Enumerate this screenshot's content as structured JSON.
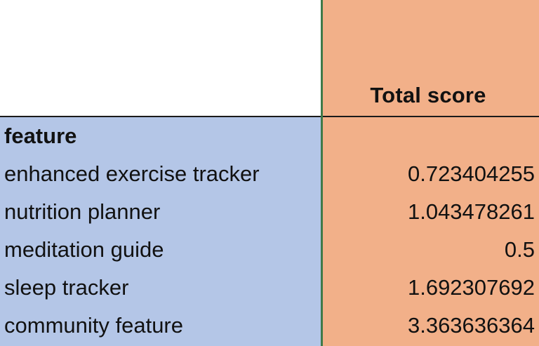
{
  "sheet": {
    "header": {
      "total_score_label": "Total score"
    },
    "row_header_label": "feature",
    "rows": [
      {
        "feature": "enhanced exercise tracker",
        "total_score": "0.723404255"
      },
      {
        "feature": "nutrition planner",
        "total_score": "1.043478261"
      },
      {
        "feature": "meditation guide",
        "total_score": "0.5"
      },
      {
        "feature": "sleep tracker",
        "total_score": "1.692307692"
      },
      {
        "feature": "community feature",
        "total_score": "3.363636364"
      }
    ],
    "colors": {
      "label_column_fill": "#b4c6e7",
      "value_column_fill": "#f2b089",
      "column_border": "#3f7a49"
    }
  }
}
